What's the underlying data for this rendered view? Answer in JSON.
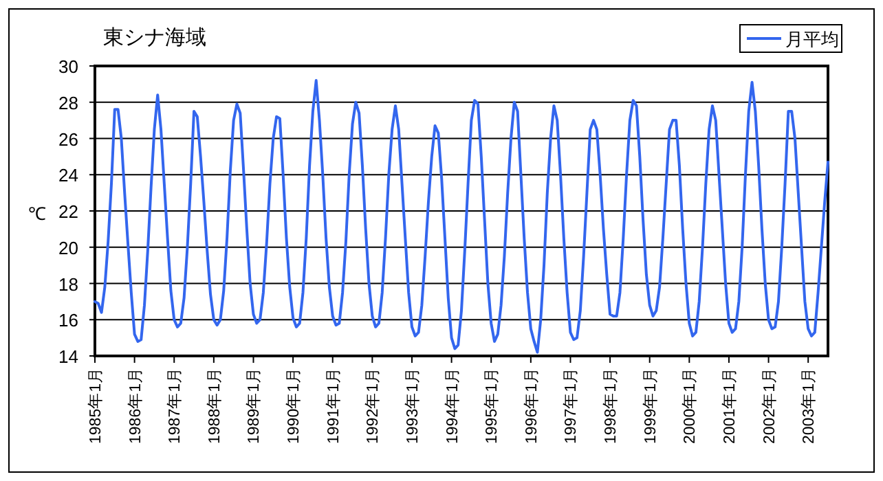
{
  "chart_data": {
    "type": "line",
    "title": "東シナ海域",
    "ylabel": "℃",
    "categories": [
      "1985年1月",
      null,
      null,
      null,
      null,
      null,
      null,
      null,
      null,
      null,
      null,
      null,
      "1986年1月",
      null,
      null,
      null,
      null,
      null,
      null,
      null,
      null,
      null,
      null,
      null,
      "1987年1月",
      null,
      null,
      null,
      null,
      null,
      null,
      null,
      null,
      null,
      null,
      null,
      "1988年1月",
      null,
      null,
      null,
      null,
      null,
      null,
      null,
      null,
      null,
      null,
      null,
      "1989年1月",
      null,
      null,
      null,
      null,
      null,
      null,
      null,
      null,
      null,
      null,
      null,
      "1990年1月",
      null,
      null,
      null,
      null,
      null,
      null,
      null,
      null,
      null,
      null,
      null,
      "1991年1月",
      null,
      null,
      null,
      null,
      null,
      null,
      null,
      null,
      null,
      null,
      null,
      "1992年1月",
      null,
      null,
      null,
      null,
      null,
      null,
      null,
      null,
      null,
      null,
      null,
      "1993年1月",
      null,
      null,
      null,
      null,
      null,
      null,
      null,
      null,
      null,
      null,
      null,
      "1994年1月",
      null,
      null,
      null,
      null,
      null,
      null,
      null,
      null,
      null,
      null,
      null,
      "1995年1月",
      null,
      null,
      null,
      null,
      null,
      null,
      null,
      null,
      null,
      null,
      null,
      "1996年1月",
      null,
      null,
      null,
      null,
      null,
      null,
      null,
      null,
      null,
      null,
      null,
      "1997年1月",
      null,
      null,
      null,
      null,
      null,
      null,
      null,
      null,
      null,
      null,
      null,
      "1998年1月",
      null,
      null,
      null,
      null,
      null,
      null,
      null,
      null,
      null,
      null,
      null,
      "1999年1月",
      null,
      null,
      null,
      null,
      null,
      null,
      null,
      null,
      null,
      null,
      null,
      "2000年1月",
      null,
      null,
      null,
      null,
      null,
      null,
      null,
      null,
      null,
      null,
      null,
      "2001年1月",
      null,
      null,
      null,
      null,
      null,
      null,
      null,
      null,
      null,
      null,
      null,
      "2002年1月",
      null,
      null,
      null,
      null,
      null,
      null,
      null,
      null,
      null,
      null,
      null,
      "2003年1月",
      null,
      null,
      null,
      null,
      null,
      null
    ],
    "series": [
      {
        "name": "月平均",
        "color": "#3366ee",
        "values": [
          17.0,
          16.9,
          16.4,
          17.8,
          20.3,
          23.5,
          27.6,
          27.6,
          26.0,
          23.0,
          20.2,
          17.5,
          15.2,
          14.8,
          14.9,
          16.8,
          19.8,
          23.3,
          26.5,
          28.4,
          26.5,
          23.5,
          20.5,
          17.6,
          16.0,
          15.6,
          15.8,
          17.2,
          20.0,
          23.5,
          27.5,
          27.2,
          25.0,
          22.5,
          19.8,
          17.4,
          16.0,
          15.7,
          16.0,
          17.6,
          20.5,
          24.2,
          27.0,
          27.9,
          27.4,
          24.3,
          21.0,
          18.0,
          16.3,
          15.8,
          16.0,
          17.5,
          20.2,
          23.5,
          26.0,
          27.2,
          27.1,
          24.0,
          20.5,
          17.8,
          16.1,
          15.6,
          15.8,
          17.5,
          20.5,
          24.5,
          27.5,
          29.2,
          27.0,
          24.0,
          20.5,
          17.8,
          16.2,
          15.7,
          15.8,
          17.5,
          20.3,
          24.0,
          26.8,
          28.0,
          27.4,
          24.5,
          21.0,
          18.0,
          16.2,
          15.6,
          15.8,
          17.5,
          20.5,
          24.0,
          26.5,
          27.8,
          26.5,
          23.5,
          20.5,
          17.5,
          15.6,
          15.1,
          15.3,
          16.8,
          19.5,
          22.5,
          25.0,
          26.7,
          26.3,
          23.8,
          20.5,
          17.2,
          15.0,
          14.4,
          14.6,
          16.5,
          19.8,
          23.5,
          27.0,
          28.1,
          27.9,
          25.0,
          21.5,
          18.0,
          15.8,
          14.8,
          15.2,
          16.8,
          19.5,
          23.0,
          26.0,
          28.0,
          27.5,
          24.0,
          20.5,
          17.5,
          15.5,
          14.8,
          14.2,
          16.0,
          19.0,
          23.0,
          26.0,
          27.8,
          27.0,
          24.0,
          20.5,
          17.5,
          15.3,
          14.9,
          15.0,
          16.5,
          19.5,
          23.0,
          26.5,
          27.0,
          26.5,
          24.0,
          21.0,
          18.5,
          16.3,
          16.2,
          16.2,
          17.5,
          20.5,
          24.0,
          27.0,
          28.1,
          27.8,
          25.0,
          21.5,
          18.5,
          16.8,
          16.2,
          16.5,
          17.8,
          20.5,
          23.5,
          26.5,
          27.0,
          27.0,
          24.5,
          21.0,
          18.0,
          15.8,
          15.1,
          15.3,
          17.0,
          20.0,
          23.5,
          26.5,
          27.8,
          27.0,
          24.0,
          21.0,
          18.0,
          15.8,
          15.3,
          15.5,
          17.0,
          20.0,
          24.0,
          27.5,
          29.1,
          27.5,
          24.5,
          21.0,
          18.0,
          16.0,
          15.5,
          15.6,
          17.0,
          20.0,
          23.5,
          27.5,
          27.5,
          26.0,
          23.0,
          20.0,
          17.0,
          15.5,
          15.1,
          15.3,
          17.5,
          20.0,
          22.5,
          24.7
        ]
      }
    ],
    "ylim": [
      14,
      30
    ],
    "yticks": [
      14,
      16,
      18,
      20,
      22,
      24,
      26,
      28,
      30
    ],
    "grid": "y",
    "legend": "top right"
  }
}
